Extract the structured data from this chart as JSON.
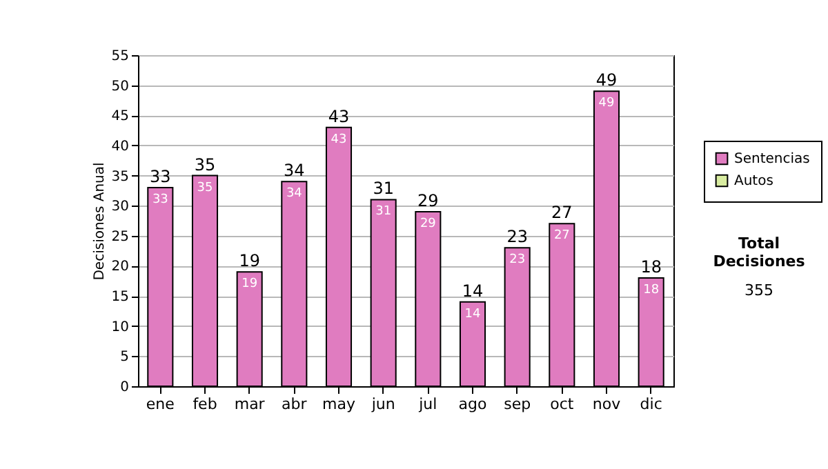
{
  "chart_data": {
    "type": "bar",
    "ylabel": "Decisiones Anual",
    "categories": [
      "ene",
      "feb",
      "mar",
      "abr",
      "may",
      "jun",
      "jul",
      "ago",
      "sep",
      "oct",
      "nov",
      "dic"
    ],
    "series": [
      {
        "name": "Sentencias",
        "color": "#e07cc0",
        "values": [
          33,
          35,
          19,
          34,
          43,
          31,
          29,
          14,
          23,
          27,
          49,
          18
        ],
        "value_labels": [
          "33",
          "35",
          "19",
          "34",
          "43",
          "31",
          "29",
          "14",
          "23",
          "27",
          "49",
          "18"
        ]
      },
      {
        "name": "Autos",
        "color": "#d8eca0",
        "values": [
          null,
          null,
          null,
          null,
          null,
          null,
          null,
          null,
          null,
          null,
          null,
          null
        ]
      }
    ],
    "stacked": true,
    "totals": [
      "33",
      "35",
      "19",
      "34",
      "43",
      "31",
      "29",
      "14",
      "23",
      "27",
      "49",
      "18"
    ],
    "ylim": [
      0,
      55
    ],
    "yticks": [
      0,
      5,
      10,
      15,
      20,
      25,
      30,
      35,
      40,
      45,
      50,
      55
    ],
    "grid": "y",
    "legend": "right",
    "annotations": [
      "Total Decisiones",
      "355"
    ]
  }
}
